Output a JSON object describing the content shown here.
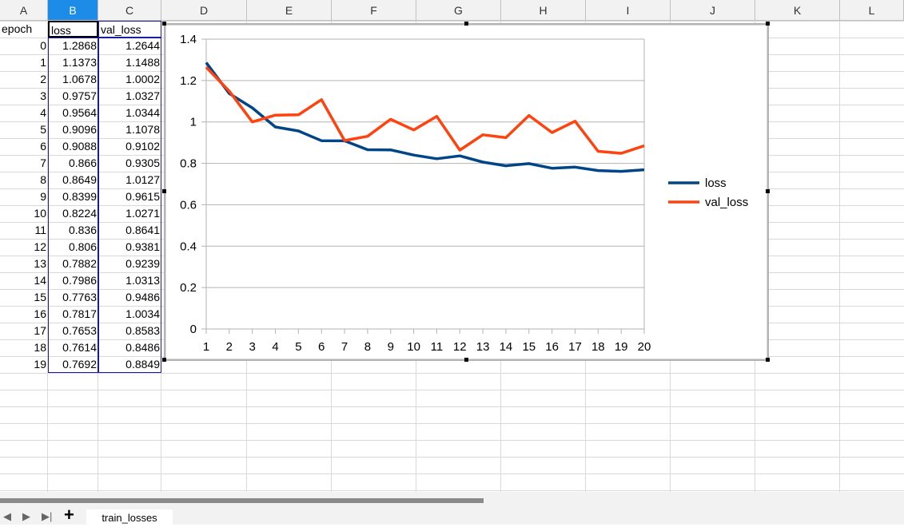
{
  "columns": [
    "A",
    "B",
    "C",
    "D",
    "E",
    "F",
    "G",
    "H",
    "I",
    "J",
    "K",
    "L"
  ],
  "headers": {
    "epoch": "epoch",
    "loss": "loss",
    "val_loss": "val_loss"
  },
  "rows": [
    {
      "epoch": "0",
      "loss": "1.2868",
      "val_loss": "1.2644"
    },
    {
      "epoch": "1",
      "loss": "1.1373",
      "val_loss": "1.1488"
    },
    {
      "epoch": "2",
      "loss": "1.0678",
      "val_loss": "1.0002"
    },
    {
      "epoch": "3",
      "loss": "0.9757",
      "val_loss": "1.0327"
    },
    {
      "epoch": "4",
      "loss": "0.9564",
      "val_loss": "1.0344"
    },
    {
      "epoch": "5",
      "loss": "0.9096",
      "val_loss": "1.1078"
    },
    {
      "epoch": "6",
      "loss": "0.9088",
      "val_loss": "0.9102"
    },
    {
      "epoch": "7",
      "loss": "0.866",
      "val_loss": "0.9305"
    },
    {
      "epoch": "8",
      "loss": "0.8649",
      "val_loss": "1.0127"
    },
    {
      "epoch": "9",
      "loss": "0.8399",
      "val_loss": "0.9615"
    },
    {
      "epoch": "10",
      "loss": "0.8224",
      "val_loss": "1.0271"
    },
    {
      "epoch": "11",
      "loss": "0.836",
      "val_loss": "0.8641"
    },
    {
      "epoch": "12",
      "loss": "0.806",
      "val_loss": "0.9381"
    },
    {
      "epoch": "13",
      "loss": "0.7882",
      "val_loss": "0.9239"
    },
    {
      "epoch": "14",
      "loss": "0.7986",
      "val_loss": "1.0313"
    },
    {
      "epoch": "15",
      "loss": "0.7763",
      "val_loss": "0.9486"
    },
    {
      "epoch": "16",
      "loss": "0.7817",
      "val_loss": "1.0034"
    },
    {
      "epoch": "17",
      "loss": "0.7653",
      "val_loss": "0.8583"
    },
    {
      "epoch": "18",
      "loss": "0.7614",
      "val_loss": "0.8486"
    },
    {
      "epoch": "19",
      "loss": "0.7692",
      "val_loss": "0.8849"
    }
  ],
  "chart_data": {
    "type": "line",
    "x": [
      1,
      2,
      3,
      4,
      5,
      6,
      7,
      8,
      9,
      10,
      11,
      12,
      13,
      14,
      15,
      16,
      17,
      18,
      19,
      20
    ],
    "series": [
      {
        "name": "loss",
        "color": "#004586",
        "values": [
          1.2868,
          1.1373,
          1.0678,
          0.9757,
          0.9564,
          0.9096,
          0.9088,
          0.866,
          0.8649,
          0.8399,
          0.8224,
          0.836,
          0.806,
          0.7882,
          0.7986,
          0.7763,
          0.7817,
          0.7653,
          0.7614,
          0.7692
        ]
      },
      {
        "name": "val_loss",
        "color": "#ff420e",
        "values": [
          1.2644,
          1.1488,
          1.0002,
          1.0327,
          1.0344,
          1.1078,
          0.9102,
          0.9305,
          1.0127,
          0.9615,
          1.0271,
          0.8641,
          0.9381,
          0.9239,
          1.0313,
          0.9486,
          1.0034,
          0.8583,
          0.8486,
          0.8849
        ]
      }
    ],
    "ylim": [
      0,
      1.4
    ],
    "yticks": [
      "0",
      "0.2",
      "0.4",
      "0.6",
      "0.8",
      "1",
      "1.2",
      "1.4"
    ],
    "grid": "horizontal",
    "legend": "right"
  },
  "sheet_tab": "train_losses",
  "icons": {
    "add": "+",
    "first": "⏴",
    "prev": "◀",
    "next": "▶",
    "last": "⏵"
  }
}
